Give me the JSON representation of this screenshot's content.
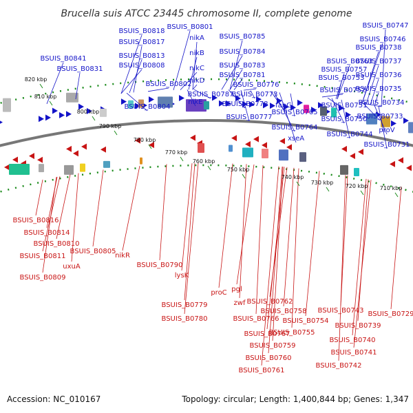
{
  "title": "Brucella suis ATCC 23445 chromosome II, complete genome",
  "accession": "Accession: NC_010167",
  "topology": "Topology: circular; Length: 1,400,844 bp; Genes: 1,347",
  "ticks": [
    "820 kbp",
    "810 kbp",
    "800 kbp",
    "790 kbp",
    "780 kbp",
    "770 kbp",
    "760 kbp",
    "750 kbp",
    "740 kbp",
    "730 kbp",
    "720 kbp",
    "710 kbp"
  ],
  "forward_labels": [
    "BSUIS_B0818",
    "BSUIS_B0801",
    "BSUIS_B0785",
    "BSUIS_B0817",
    "nikA",
    "BSUIS_B0784",
    "BSUIS_B0841",
    "BSUIS_B0813",
    "nikB",
    "BSUIS_B0831",
    "BSUIS_B0808",
    "nikC",
    "BSUIS_B0783",
    "BSUIS_B0781",
    "nikD",
    "BSUIS_B0802",
    "BSUIS_B0787",
    "BSUIS_B0776",
    "nikE",
    "BSUIS_B0773",
    "BSUIS_B0804",
    "BSUIS_B0778",
    "fabG",
    "BSUIS_B0777",
    "BSUIS_B0765",
    "BSUIS_B0764",
    "xseA",
    "BSUIS_B0763",
    "BSUIS_B0757",
    "BSUIS_B0753",
    "BSUIS_B0752",
    "BSUIS_B0751",
    "BSUIS_B0750",
    "BSUIS_B0744",
    "BSUIS_B0747",
    "BSUIS_B0746",
    "BSUIS_B0738",
    "BSUIS_B0737",
    "BSUIS_B0736",
    "BSUIS_B0735",
    "BSUIS_B0734",
    "BSUIS_B0733",
    "proV",
    "BSUIS_B0731"
  ],
  "reverse_labels": [
    "BSUIS_B0816",
    "BSUIS_B0814",
    "BSUIS_B0810",
    "BSUIS_B0811",
    "uxuA",
    "BSUIS_B0805",
    "BSUIS_B0809",
    "nikR",
    "BSUIS_B0790",
    "lysK",
    "proC",
    "pgl",
    "zwf",
    "BSUIS_B0779",
    "BSUIS_B0780",
    "BSUIS_B0762",
    "BSUIS_B0766",
    "BSUIS_B0758",
    "BSUIS_B0754",
    "BSUIS_B0767",
    "BSUIS_B0755",
    "BSUIS_B0759",
    "BSUIS_B0760",
    "BSUIS_B0761",
    "BSUIS_B0743",
    "BSUIS_B0739",
    "BSUIS_B0740",
    "BSUIS_B0741",
    "BSUIS_B0742",
    "BSUIS_B0729"
  ],
  "colors": {
    "forward": "#1414c8",
    "reverse": "#c81414",
    "backbone": "#777777",
    "dots": "#1a8a1a",
    "tick": "#1a8a1a"
  }
}
